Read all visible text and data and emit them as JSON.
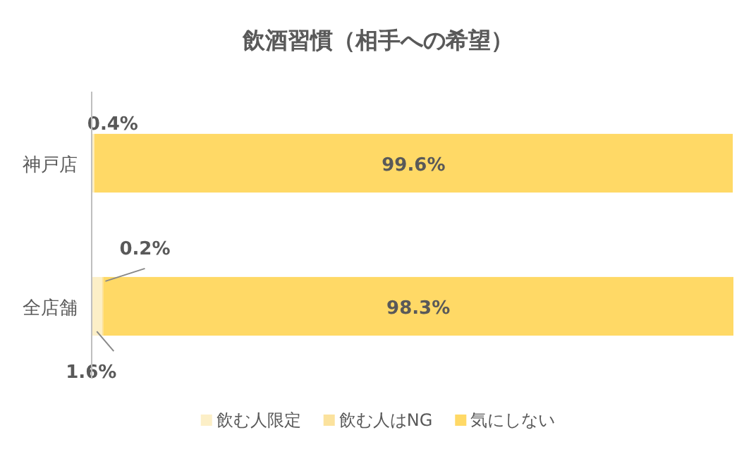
{
  "chart_data": {
    "type": "bar",
    "orientation": "horizontal",
    "stacked": true,
    "title": "飲酒習慣（相手への希望）",
    "categories": [
      "神戸店",
      "全店舗"
    ],
    "series": [
      {
        "name": "飲む人限定",
        "color": "#fcefc7",
        "values": [
          0.4,
          1.6
        ],
        "value_labels": [
          "0.4%",
          "1.6%"
        ]
      },
      {
        "name": "飲む人はNG",
        "color": "#fbe29d",
        "values": [
          null,
          0.2
        ],
        "value_labels": [
          null,
          "0.2%"
        ]
      },
      {
        "name": "気にしない",
        "color": "#ffd966",
        "values": [
          99.6,
          98.3
        ],
        "value_labels": [
          "99.6%",
          "98.3%"
        ]
      }
    ],
    "legend": "bottom"
  }
}
